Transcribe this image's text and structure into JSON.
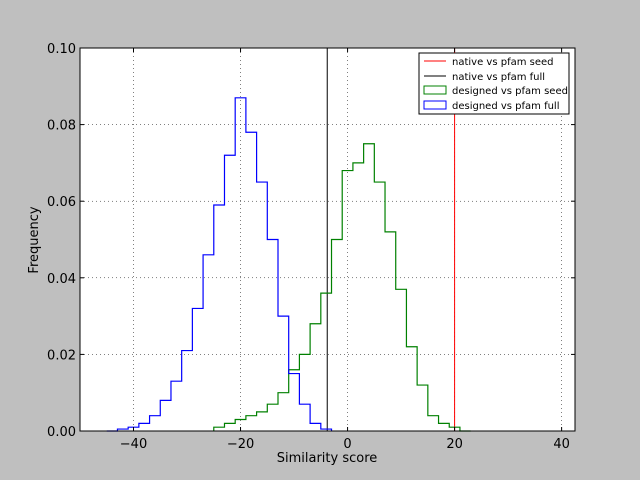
{
  "chart_data": {
    "type": "line",
    "xlabel": "Similarity score",
    "ylabel": "Frequency",
    "xlim": [
      -50,
      42.5
    ],
    "ylim": [
      0,
      0.1
    ],
    "xticks": [
      -40,
      -20,
      0,
      20,
      40
    ],
    "xtick_labels": [
      "−40",
      "−20",
      "0",
      "20",
      "40"
    ],
    "yticks": [
      0,
      0.02,
      0.04,
      0.06,
      0.08,
      0.1
    ],
    "ytick_labels": [
      "0.00",
      "0.02",
      "0.04",
      "0.06",
      "0.08",
      "0.10"
    ],
    "grid": true,
    "legend_position": "top-right",
    "vlines": [
      {
        "name": "native vs pfam seed",
        "x": 20,
        "color": "#ff0000"
      },
      {
        "name": "native vs pfam full",
        "x": -3.8,
        "color": "#000000"
      }
    ],
    "series": [
      {
        "name": "designed vs pfam seed",
        "color": "#008000",
        "x": [
          -24,
          -22,
          -20,
          -18,
          -16,
          -14,
          -12,
          -10,
          -8,
          -6,
          -4,
          -2,
          0,
          2,
          4,
          6,
          8,
          10,
          12,
          14,
          16,
          18,
          20,
          22
        ],
        "y": [
          0.001,
          0.002,
          0.003,
          0.004,
          0.005,
          0.007,
          0.01,
          0.016,
          0.02,
          0.028,
          0.036,
          0.05,
          0.068,
          0.07,
          0.075,
          0.065,
          0.052,
          0.037,
          0.022,
          0.012,
          0.004,
          0.002,
          0.001,
          0.0
        ]
      },
      {
        "name": "designed vs pfam full",
        "color": "#0000ff",
        "x": [
          -44,
          -42,
          -40,
          -38,
          -36,
          -34,
          -32,
          -30,
          -28,
          -26,
          -24,
          -22,
          -20,
          -18,
          -16,
          -14,
          -12,
          -10,
          -8,
          -6,
          -4
        ],
        "y": [
          0.0,
          0.0005,
          0.001,
          0.002,
          0.004,
          0.008,
          0.013,
          0.021,
          0.032,
          0.046,
          0.059,
          0.072,
          0.087,
          0.078,
          0.065,
          0.05,
          0.03,
          0.015,
          0.007,
          0.002,
          0.0005
        ]
      }
    ]
  }
}
